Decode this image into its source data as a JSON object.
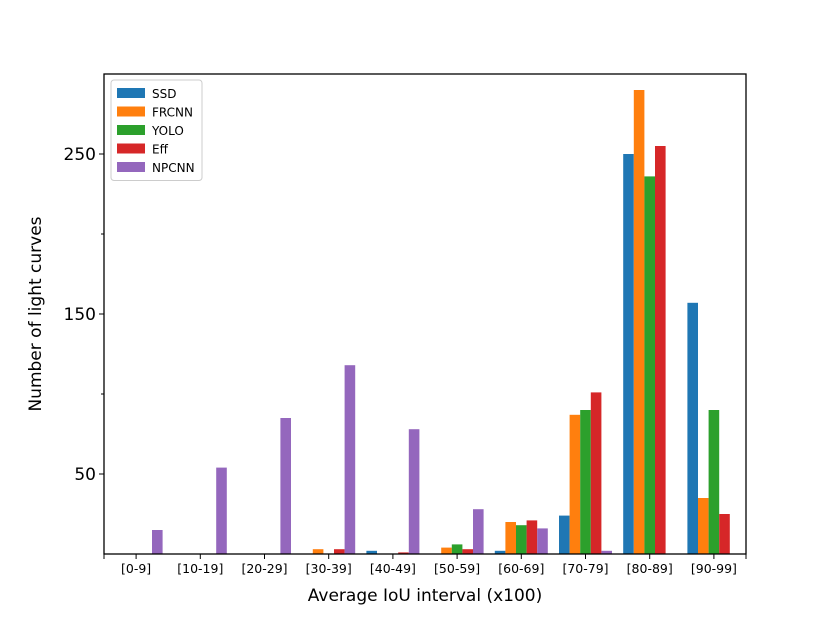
{
  "chart_data": {
    "type": "bar",
    "xlabel": "Average IoU interval (x100)",
    "ylabel": "Number of light curves",
    "categories": [
      "[0-9]",
      "[10-19]",
      "[20-29]",
      "[30-39]",
      "[40-49]",
      "[50-59]",
      "[60-69]",
      "[70-79]",
      "[80-89]",
      "[90-99]"
    ],
    "ylim": [
      0,
      300
    ],
    "yticks": [
      50,
      150,
      250
    ],
    "yminor_ticks": [
      100,
      200
    ],
    "legend_position": "top-left",
    "grid": false,
    "series": [
      {
        "name": "SSD",
        "color": "#1f77b4",
        "values": [
          0,
          0,
          0,
          0,
          2,
          0,
          2,
          24,
          250,
          157
        ]
      },
      {
        "name": "FRCNN",
        "color": "#ff7f0e",
        "values": [
          0,
          0,
          0,
          3,
          0,
          4,
          20,
          87,
          290,
          35
        ]
      },
      {
        "name": "YOLO",
        "color": "#2ca02c",
        "values": [
          0,
          0,
          0,
          0,
          0,
          6,
          18,
          90,
          236,
          90
        ]
      },
      {
        "name": "Eff",
        "color": "#d62728",
        "values": [
          0,
          0,
          0,
          3,
          1,
          3,
          21,
          101,
          255,
          25
        ]
      },
      {
        "name": "NPCNN",
        "color": "#9467bd",
        "values": [
          15,
          54,
          85,
          118,
          78,
          28,
          16,
          2,
          0,
          0
        ]
      }
    ]
  }
}
